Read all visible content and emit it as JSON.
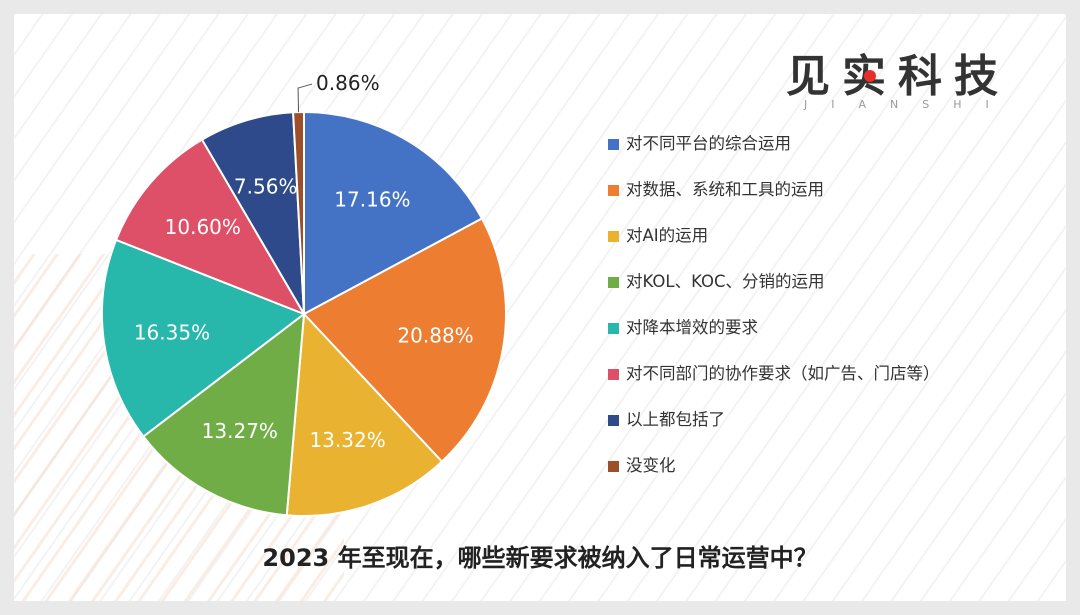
{
  "logo": {
    "text": "见实科技",
    "subtext": "JIANSHI"
  },
  "title": "2023 年至现在，哪些新要求被纳入了日常运营中？",
  "chart_data": {
    "type": "pie",
    "title": "2023 年至现在，哪些新要求被纳入了日常运营中？",
    "legend_position": "right",
    "categories": [
      "对不同平台的综合运用",
      "对数据、系统和工具的运用",
      "对AI的运用",
      "对KOL、KOC、分销的运用",
      "对降本增效的要求",
      "对不同部门的协作要求（如广告、门店等）",
      "以上都包括了",
      "没变化"
    ],
    "values": [
      17.16,
      20.88,
      13.32,
      13.27,
      16.35,
      10.6,
      7.56,
      0.86
    ],
    "labels": [
      "17.16%",
      "20.88%",
      "13.32%",
      "13.27%",
      "16.35%",
      "10.60%",
      "7.56%",
      "0.86%"
    ],
    "colors": [
      "#4472c4",
      "#ed7d31",
      "#e9b230",
      "#70ad47",
      "#27b7ab",
      "#de4f68",
      "#2e4a8a",
      "#9c4f28"
    ]
  }
}
